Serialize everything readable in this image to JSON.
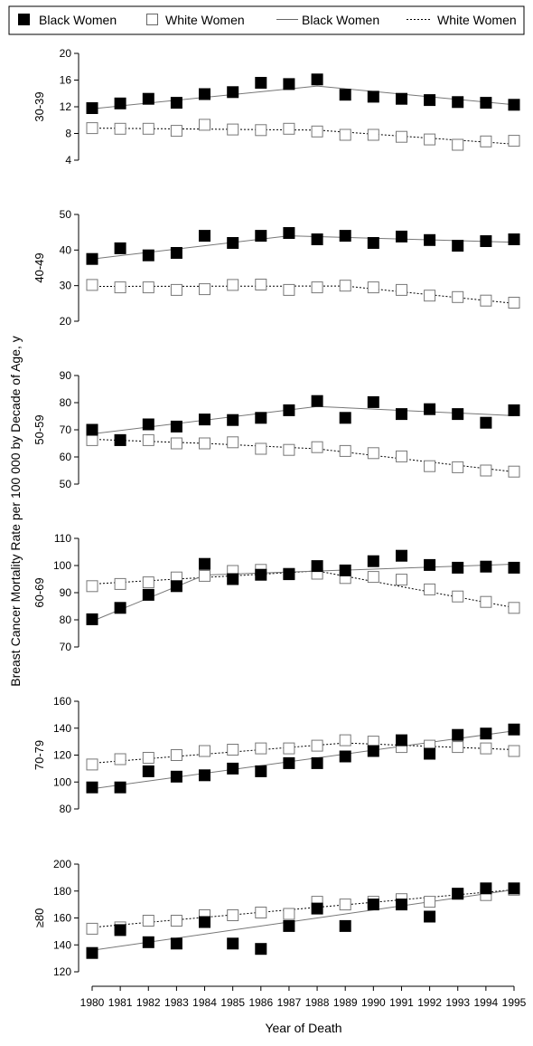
{
  "chart_data": {
    "type": "line",
    "ylabel": "Breast Cancer Mortality Rate per 100 000 by Decade of Age, y",
    "xlabel": "Year of Death",
    "x": [
      1980,
      1981,
      1982,
      1983,
      1984,
      1985,
      1986,
      1987,
      1988,
      1989,
      1990,
      1991,
      1992,
      1993,
      1994,
      1995
    ],
    "legend": {
      "placement": "top",
      "entries": [
        {
          "label": "Black Women",
          "marker": "filled-square"
        },
        {
          "label": "White Women",
          "marker": "open-square"
        },
        {
          "label": "Black Women",
          "marker": "solid-line"
        },
        {
          "label": "White Women",
          "marker": "dotted-line"
        }
      ]
    },
    "panels": [
      {
        "label": "30-39",
        "ylim": [
          4,
          20
        ],
        "yticks": [
          4,
          8,
          12,
          16,
          20
        ],
        "black": [
          11.8,
          12.5,
          13.2,
          12.6,
          13.9,
          14.2,
          15.6,
          15.4,
          16.1,
          13.8,
          13.5,
          13.2,
          13.0,
          12.7,
          12.6,
          12.3
        ],
        "white": [
          8.8,
          8.7,
          8.7,
          8.4,
          9.3,
          8.6,
          8.5,
          8.7,
          8.3,
          7.8,
          7.8,
          7.5,
          7.1,
          6.3,
          6.8,
          6.9
        ],
        "black_fit": [
          [
            1980,
            11.7
          ],
          [
            1988,
            15.1
          ],
          [
            1995,
            12.3
          ]
        ],
        "white_fit": [
          [
            1980,
            8.8
          ],
          [
            1988,
            8.5
          ],
          [
            1995,
            6.4
          ]
        ]
      },
      {
        "label": "40-49",
        "ylim": [
          20,
          50
        ],
        "yticks": [
          20,
          30,
          40,
          50
        ],
        "black": [
          37.5,
          40.5,
          38.5,
          39.2,
          44.0,
          42.0,
          44.0,
          44.8,
          43.0,
          44.0,
          42.0,
          43.8,
          42.8,
          41.2,
          42.5,
          43.0
        ],
        "white": [
          30.2,
          29.5,
          29.5,
          28.8,
          29.0,
          30.2,
          30.3,
          28.8,
          29.5,
          30.0,
          29.5,
          28.8,
          27.2,
          26.8,
          25.8,
          25.2
        ],
        "black_fit": [
          [
            1980,
            37.5
          ],
          [
            1987,
            44.0
          ],
          [
            1995,
            42.2
          ]
        ],
        "white_fit": [
          [
            1980,
            29.8
          ],
          [
            1989,
            29.9
          ],
          [
            1995,
            25.0
          ]
        ]
      },
      {
        "label": "50-59",
        "ylim": [
          50,
          90
        ],
        "yticks": [
          50,
          60,
          70,
          80,
          90
        ],
        "black": [
          70.0,
          66.2,
          72.0,
          71.2,
          73.8,
          73.6,
          74.4,
          77.2,
          80.6,
          74.4,
          80.2,
          75.8,
          77.6,
          75.8,
          72.6,
          77.2
        ],
        "white": [
          66.2,
          66.2,
          66.2,
          65.0,
          65.0,
          65.4,
          63.0,
          62.6,
          63.6,
          62.2,
          61.4,
          60.2,
          56.6,
          56.2,
          55.0,
          54.6
        ],
        "black_fit": [
          [
            1980,
            68.5
          ],
          [
            1988,
            78.6
          ],
          [
            1995,
            75.2
          ]
        ],
        "white_fit": [
          [
            1980,
            66.5
          ],
          [
            1984,
            65.0
          ],
          [
            1988,
            63.0
          ],
          [
            1995,
            54.5
          ]
        ]
      },
      {
        "label": "60-69",
        "ylim": [
          70,
          110
        ],
        "yticks": [
          70,
          80,
          90,
          100,
          110
        ],
        "black": [
          80.2,
          84.4,
          89.2,
          92.4,
          100.6,
          95.0,
          96.6,
          96.8,
          99.8,
          98.2,
          101.6,
          103.6,
          100.2,
          99.2,
          99.6,
          99.2
        ],
        "white": [
          92.4,
          93.2,
          93.8,
          95.6,
          96.2,
          98.0,
          98.4,
          97.0,
          97.0,
          95.4,
          95.8,
          94.8,
          91.2,
          88.6,
          86.6,
          84.4
        ],
        "black_fit": [
          [
            1980,
            79.5
          ],
          [
            1984,
            96.5
          ],
          [
            1995,
            100.5
          ]
        ],
        "white_fit": [
          [
            1980,
            93.2
          ],
          [
            1988,
            98.0
          ],
          [
            1995,
            84.5
          ]
        ]
      },
      {
        "label": "70-79",
        "ylim": [
          80,
          160
        ],
        "yticks": [
          80,
          100,
          120,
          140,
          160
        ],
        "black": [
          96.0,
          96.0,
          108.0,
          104.0,
          105.0,
          110.0,
          108.0,
          114.0,
          114.0,
          119.0,
          123.0,
          131.0,
          121.0,
          135.0,
          136.0,
          139.0
        ],
        "white": [
          113.0,
          117.0,
          118.0,
          120.0,
          123.0,
          124.0,
          125.0,
          125.0,
          127.0,
          131.0,
          130.0,
          126.0,
          127.0,
          126.0,
          125.0,
          123.0
        ],
        "black_fit": [
          [
            1980,
            95.0
          ],
          [
            1995,
            138.0
          ]
        ],
        "white_fit": [
          [
            1980,
            114.0
          ],
          [
            1989,
            129.0
          ],
          [
            1995,
            124.0
          ]
        ]
      },
      {
        "label": "≥80",
        "ylim": [
          120,
          200
        ],
        "yticks": [
          120,
          140,
          160,
          180,
          200
        ],
        "black": [
          134.0,
          151.0,
          142.0,
          141.0,
          157.0,
          141.0,
          137.0,
          154.0,
          167.0,
          154.0,
          170.0,
          170.0,
          161.0,
          178.0,
          182.0,
          182.0
        ],
        "white": [
          152.0,
          153.0,
          158.0,
          158.0,
          162.0,
          162.0,
          164.0,
          163.0,
          172.0,
          170.0,
          172.0,
          174.0,
          172.0,
          178.0,
          177.0,
          181.0
        ],
        "black_fit": [
          [
            1980,
            136.0
          ],
          [
            1995,
            181.0
          ]
        ],
        "white_fit": [
          [
            1980,
            153.0
          ],
          [
            1995,
            181.0
          ]
        ]
      }
    ]
  }
}
